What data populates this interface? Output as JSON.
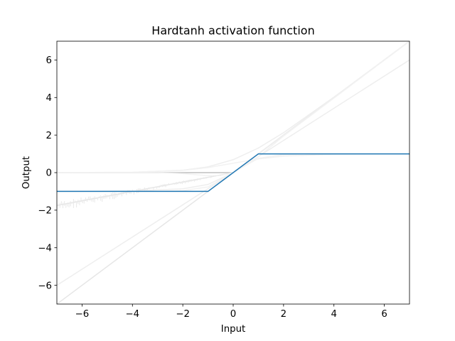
{
  "chart_data": {
    "type": "line",
    "title": "Hardtanh activation function",
    "xlabel": "Input",
    "ylabel": "Output",
    "xlim": [
      -7,
      7
    ],
    "ylim": [
      -7,
      7
    ],
    "xticks": [
      -6,
      -4,
      -2,
      0,
      2,
      4,
      6
    ],
    "yticks": [
      -6,
      -4,
      -2,
      0,
      2,
      4,
      6
    ],
    "xtick_labels": [
      "−6",
      "−4",
      "−2",
      "0",
      "2",
      "4",
      "6"
    ],
    "ytick_labels": [
      "−6",
      "−4",
      "−2",
      "0",
      "2",
      "4",
      "6"
    ],
    "grid": false,
    "legend": "none",
    "main_series": {
      "function": "hardtanh",
      "color": "#1f77b4",
      "x": [
        -7,
        -1,
        1,
        7
      ],
      "y": [
        -1,
        -1,
        1,
        1
      ]
    },
    "background_series": [
      {
        "function": "relu",
        "color": "#bfbfbf",
        "x": [
          -7,
          0,
          7
        ],
        "y": [
          0,
          0,
          7
        ]
      },
      {
        "function": "identity",
        "color": "#e6e6e6",
        "x": [
          -7,
          7
        ],
        "y": [
          -7,
          7
        ]
      },
      {
        "function": "leaky_relu",
        "color": "#e6e6e6",
        "x": [
          -7,
          0,
          7
        ],
        "y": [
          -1.75,
          0,
          7
        ]
      },
      {
        "function": "shifted_linear",
        "color": "#eeeeee",
        "x": [
          -7,
          7
        ],
        "y": [
          -6,
          6
        ]
      },
      {
        "function": "elu",
        "color": "#eeeeee",
        "x": [
          -7,
          -4,
          -2,
          -1,
          0,
          7
        ],
        "y": [
          -1.0,
          -0.98,
          -0.86,
          -0.63,
          0,
          7
        ]
      },
      {
        "function": "softplus",
        "color": "#eeeeee",
        "x": [
          -7,
          -4,
          -2,
          -1,
          0,
          1,
          2,
          4,
          7
        ],
        "y": [
          0.0,
          0.02,
          0.13,
          0.31,
          0.69,
          1.31,
          2.13,
          4.02,
          7.0
        ]
      },
      {
        "function": "sigmoid",
        "color": "#f2f2f2",
        "x": [
          -7,
          -4,
          -2,
          -1,
          0,
          1,
          2,
          4,
          7
        ],
        "y": [
          0.0,
          0.02,
          0.12,
          0.27,
          0.5,
          0.73,
          0.88,
          0.98,
          1.0
        ]
      },
      {
        "function": "tanh",
        "color": "#f2f2f2",
        "x": [
          -7,
          -3,
          -2,
          -1,
          0,
          1,
          2,
          3,
          7
        ],
        "y": [
          -1.0,
          -1.0,
          -0.96,
          -0.76,
          0,
          0.76,
          0.96,
          1.0,
          1.0
        ]
      },
      {
        "function": "gelu",
        "color": "#f2f2f2",
        "x": [
          -7,
          -3,
          -2,
          -1,
          -0.5,
          0,
          1,
          2,
          7
        ],
        "y": [
          0,
          0,
          -0.05,
          -0.16,
          -0.15,
          0,
          0.84,
          1.95,
          7
        ]
      }
    ]
  }
}
